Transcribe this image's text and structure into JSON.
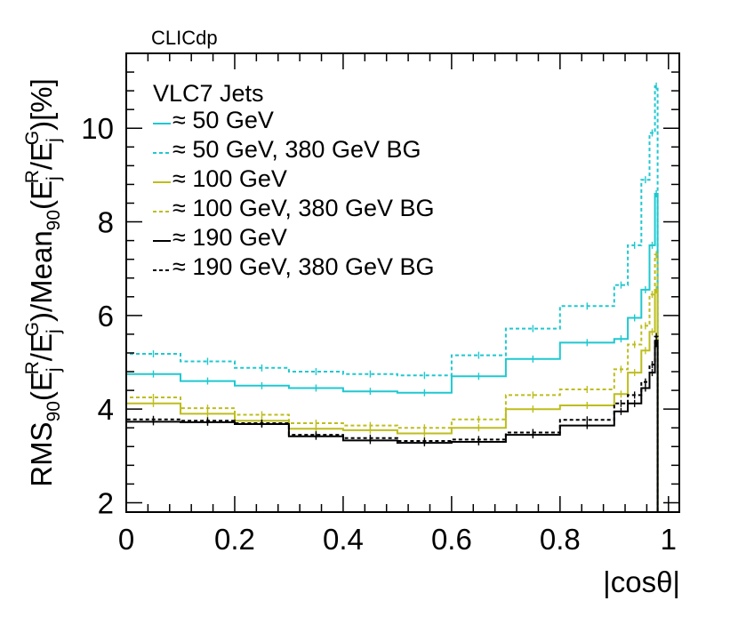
{
  "chart_data": {
    "type": "line",
    "drawstyle": "steps",
    "experiment_label": "CLICdp",
    "title": "",
    "xlabel": "|cosθ|",
    "ylabel": {
      "prefix": "RMS",
      "prefix_sub": "90",
      "open": "(E",
      "j1": "j",
      "r": "R",
      "slash1": "/E",
      "j2": "j",
      "g": "G",
      "mid": ")/Mean",
      "mid_sub": "90",
      "open2": "(E",
      "j3": "j",
      "r2": "R",
      "slash2": "/E",
      "j4": "j",
      "g2": "G",
      "close": ")[%]"
    },
    "xlim": [
      0,
      1.02
    ],
    "ylim": [
      1.8,
      11.6
    ],
    "x_ticks": [
      0,
      0.2,
      0.4,
      0.6,
      0.8,
      1
    ],
    "x_tick_labels": [
      "0",
      "0.2",
      "0.4",
      "0.6",
      "0.8",
      "1"
    ],
    "y_ticks": [
      2,
      4,
      6,
      8,
      10
    ],
    "y_tick_labels": [
      "2",
      "4",
      "6",
      "8",
      "10"
    ],
    "legend": {
      "title": "VLC7 Jets",
      "placement": "top-left",
      "entries": [
        "≈ 50 GeV",
        "≈ 50 GeV, 380 GeV BG",
        "≈ 100 GeV",
        "≈ 100 GeV, 380 GeV BG",
        "≈ 190 GeV",
        "≈ 190 GeV, 380 GeV BG"
      ]
    },
    "bin_edges": [
      0,
      0.1,
      0.2,
      0.3,
      0.4,
      0.5,
      0.6,
      0.7,
      0.8,
      0.9,
      0.925,
      0.95,
      0.965,
      0.975,
      0.98
    ],
    "series": [
      {
        "name": "≈ 50 GeV",
        "color": "#1fc8d0",
        "dashed": false,
        "values": [
          4.75,
          4.6,
          4.5,
          4.45,
          4.38,
          4.35,
          4.7,
          5.07,
          5.42,
          5.5,
          5.95,
          6.55,
          7.5,
          8.6
        ]
      },
      {
        "name": "≈ 50 GeV, 380 GeV BG",
        "color": "#1fc8d0",
        "dashed": true,
        "values": [
          5.18,
          5.02,
          4.88,
          4.8,
          4.75,
          4.72,
          5.15,
          5.72,
          6.2,
          6.65,
          7.5,
          8.9,
          9.9,
          10.9
        ]
      },
      {
        "name": "≈ 100 GeV",
        "color": "#bdbd1d",
        "dashed": false,
        "values": [
          4.12,
          3.9,
          3.75,
          3.58,
          3.55,
          3.48,
          3.6,
          4.0,
          4.08,
          4.32,
          4.78,
          5.25,
          5.65,
          6.55
        ]
      },
      {
        "name": "≈ 100 GeV, 380 GeV BG",
        "color": "#bdbd1d",
        "dashed": true,
        "values": [
          4.25,
          4.02,
          3.88,
          3.7,
          3.65,
          3.6,
          3.78,
          4.3,
          4.42,
          4.85,
          5.38,
          5.78,
          6.45,
          7.3
        ]
      },
      {
        "name": "≈ 190 GeV",
        "color": "#000000",
        "dashed": false,
        "values": [
          3.73,
          3.72,
          3.68,
          3.42,
          3.33,
          3.28,
          3.3,
          3.45,
          3.65,
          3.95,
          4.12,
          4.45,
          4.78,
          5.4
        ]
      },
      {
        "name": "≈ 190 GeV, 380 GeV BG",
        "color": "#000000",
        "dashed": true,
        "values": [
          3.78,
          3.75,
          3.7,
          3.45,
          3.38,
          3.32,
          3.35,
          3.5,
          3.77,
          4.12,
          4.3,
          4.58,
          4.95,
          5.55
        ]
      }
    ]
  }
}
